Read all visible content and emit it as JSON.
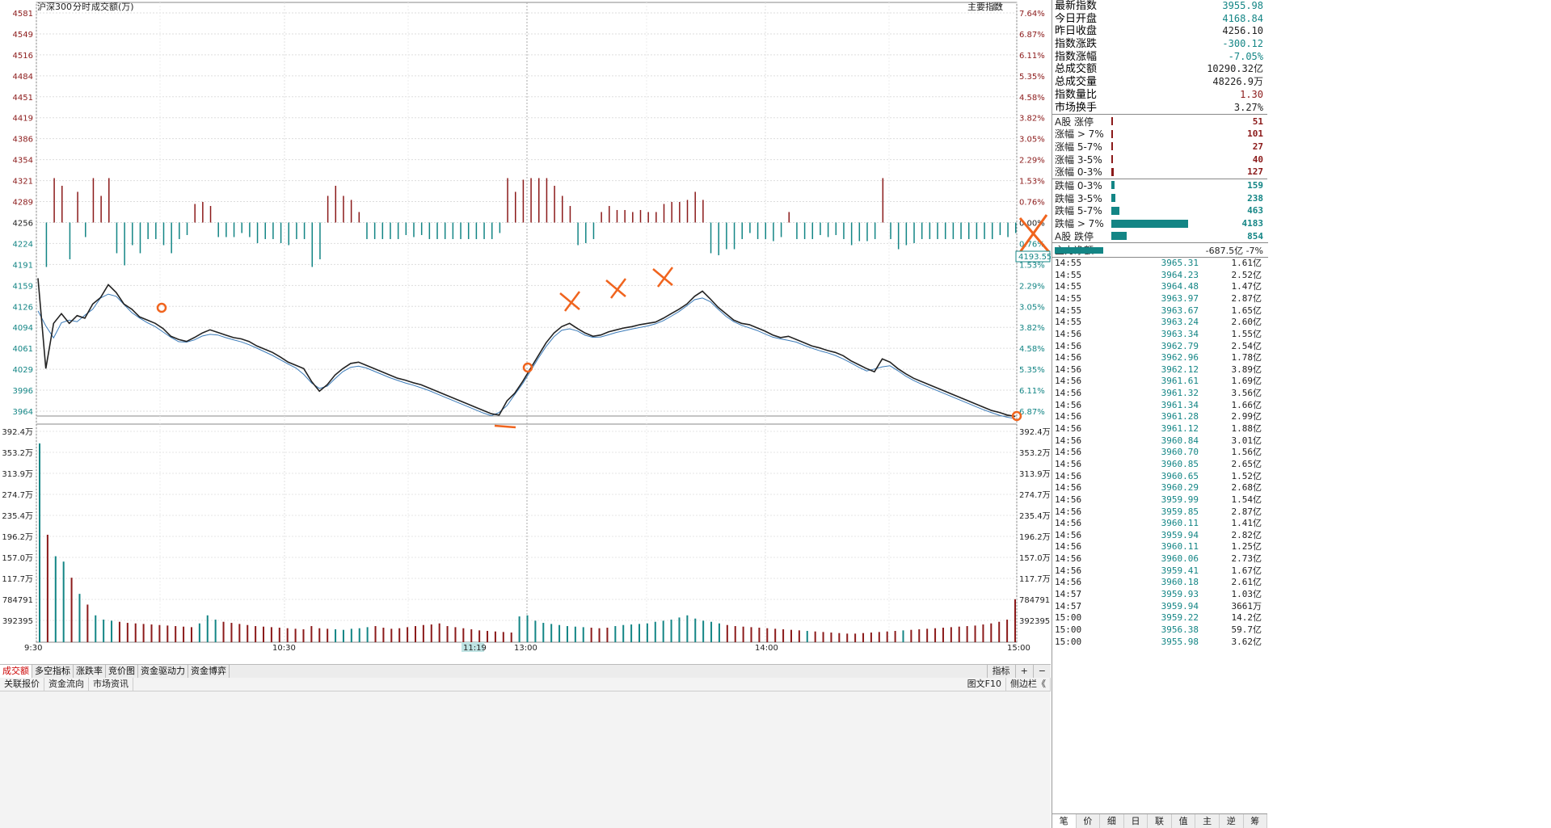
{
  "header": {
    "index_name": "沪深300",
    "mode": "分时",
    "sub": "成交额(万)",
    "main_index_btn": "主要指数"
  },
  "price_axis": {
    "left_labels": [
      "4581",
      "4549",
      "4516",
      "4484",
      "4451",
      "4419",
      "4386",
      "4354",
      "4321",
      "4289",
      "4256",
      "4224",
      "4191",
      "4159",
      "4126",
      "4094",
      "4061",
      "4029",
      "3996",
      "3964"
    ],
    "right_labels": [
      "7.64%",
      "6.87%",
      "6.11%",
      "5.35%",
      "4.58%",
      "3.82%",
      "3.05%",
      "2.29%",
      "1.53%",
      "0.76%",
      "0.00%",
      "0.76%",
      "1.53%",
      "2.29%",
      "3.05%",
      "3.82%",
      "4.58%",
      "5.35%",
      "6.11%",
      "6.87%"
    ],
    "cursor_value": "4193.55"
  },
  "volume_axis": {
    "labels": [
      "392.4万",
      "353.2万",
      "313.9万",
      "274.7万",
      "235.4万",
      "196.2万",
      "157.0万",
      "117.7万",
      "784791",
      "392395"
    ]
  },
  "time_axis": {
    "labels": [
      "9:30",
      "10:30",
      "13:00",
      "14:00",
      "15:00"
    ],
    "cursor_label": "11:19"
  },
  "bottom_tabs": [
    "成交额",
    "多空指标",
    "涨跌率",
    "竞价图",
    "资金驱动力",
    "资金博弈"
  ],
  "bottom_tools": [
    "指标",
    "+",
    "−"
  ],
  "status_links": [
    "关联报价",
    "资金流向",
    "市场资讯"
  ],
  "status_right": [
    "图文F10",
    "侧边栏《"
  ],
  "stats": [
    {
      "label": "最新指数",
      "value": "3955.98",
      "color": "#138585"
    },
    {
      "label": "今日开盘",
      "value": "4168.84",
      "color": "#138585"
    },
    {
      "label": "昨日收盘",
      "value": "4256.10",
      "color": "#222"
    },
    {
      "label": "指数涨跌",
      "value": "-300.12",
      "color": "#138585"
    },
    {
      "label": "指数涨幅",
      "value": "-7.05%",
      "color": "#138585"
    },
    {
      "label": "总成交额",
      "value": "10290.32亿",
      "color": "#222"
    },
    {
      "label": "总成交量",
      "value": "48226.9万",
      "color": "#222"
    },
    {
      "label": "指数量比",
      "value": "1.30",
      "color": "#8b1a1a"
    },
    {
      "label": "市场换手",
      "value": "3.27%",
      "color": "#222"
    }
  ],
  "dist_up": [
    {
      "label": "A股 涨停",
      "value": "51",
      "frac": 0.012
    },
    {
      "label": "涨幅 > 7%",
      "value": "101",
      "frac": 0.024
    },
    {
      "label": "涨幅 5-7%",
      "value": "27",
      "frac": 0.006
    },
    {
      "label": "涨幅 3-5%",
      "value": "40",
      "frac": 0.01
    },
    {
      "label": "涨幅 0-3%",
      "value": "127",
      "frac": 0.03
    }
  ],
  "dist_down": [
    {
      "label": "跌幅 0-3%",
      "value": "159",
      "frac": 0.038
    },
    {
      "label": "跌幅 3-5%",
      "value": "238",
      "frac": 0.057
    },
    {
      "label": "跌幅 5-7%",
      "value": "463",
      "frac": 0.11
    },
    {
      "label": "跌幅 > 7%",
      "value": "4183",
      "frac": 1.0
    },
    {
      "label": "A股 跌停",
      "value": "854",
      "frac": 0.204
    }
  ],
  "net_flow": {
    "label": "主力净额",
    "value": "-687.5亿",
    "pct": "-7%"
  },
  "ticks": [
    [
      "14:55",
      "3965.31",
      "1.61亿"
    ],
    [
      "14:55",
      "3964.23",
      "2.52亿"
    ],
    [
      "14:55",
      "3964.48",
      "1.47亿"
    ],
    [
      "14:55",
      "3963.97",
      "2.87亿"
    ],
    [
      "14:55",
      "3963.67",
      "1.65亿"
    ],
    [
      "14:55",
      "3963.24",
      "2.60亿"
    ],
    [
      "14:56",
      "3963.34",
      "1.55亿"
    ],
    [
      "14:56",
      "3962.79",
      "2.54亿"
    ],
    [
      "14:56",
      "3962.96",
      "1.78亿"
    ],
    [
      "14:56",
      "3962.12",
      "3.89亿"
    ],
    [
      "14:56",
      "3961.61",
      "1.69亿"
    ],
    [
      "14:56",
      "3961.32",
      "3.56亿"
    ],
    [
      "14:56",
      "3961.34",
      "1.66亿"
    ],
    [
      "14:56",
      "3961.28",
      "2.99亿"
    ],
    [
      "14:56",
      "3961.12",
      "1.88亿"
    ],
    [
      "14:56",
      "3960.84",
      "3.01亿"
    ],
    [
      "14:56",
      "3960.70",
      "1.56亿"
    ],
    [
      "14:56",
      "3960.85",
      "2.65亿"
    ],
    [
      "14:56",
      "3960.65",
      "1.52亿"
    ],
    [
      "14:56",
      "3960.29",
      "2.68亿"
    ],
    [
      "14:56",
      "3959.99",
      "1.54亿"
    ],
    [
      "14:56",
      "3959.85",
      "2.87亿"
    ],
    [
      "14:56",
      "3960.11",
      "1.41亿"
    ],
    [
      "14:56",
      "3959.94",
      "2.82亿"
    ],
    [
      "14:56",
      "3960.11",
      "1.25亿"
    ],
    [
      "14:56",
      "3960.06",
      "2.73亿"
    ],
    [
      "14:56",
      "3959.41",
      "1.67亿"
    ],
    [
      "14:56",
      "3960.18",
      "2.61亿"
    ],
    [
      "14:57",
      "3959.93",
      "1.03亿"
    ],
    [
      "14:57",
      "3959.94",
      "3661万"
    ],
    [
      "15:00",
      "3959.22",
      "14.2亿"
    ],
    [
      "15:00",
      "3956.38",
      "59.7亿"
    ],
    [
      "15:00",
      "3955.98",
      "3.62亿"
    ]
  ],
  "side_tabs": [
    "笔",
    "价",
    "细",
    "日",
    "联",
    "值",
    "主",
    "逆",
    "筹"
  ],
  "colors": {
    "up": "#8b1a1a",
    "down": "#138585",
    "index_line": "#222222",
    "avg_line": "#3a7ab8",
    "mark": "#f0641e"
  },
  "chart_data": {
    "type": "line",
    "series_price": [
      4170,
      4030,
      4100,
      4115,
      4100,
      4112,
      4108,
      4130,
      4140,
      4160,
      4148,
      4130,
      4122,
      4110,
      4105,
      4100,
      4092,
      4080,
      4075,
      4072,
      4078,
      4085,
      4090,
      4086,
      4082,
      4078,
      4076,
      4072,
      4065,
      4060,
      4055,
      4048,
      4040,
      4035,
      4030,
      4010,
      3995,
      4005,
      4020,
      4030,
      4038,
      4040,
      4035,
      4030,
      4025,
      4020,
      4015,
      4012,
      4008,
      4005,
      4000,
      3995,
      3990,
      3985,
      3980,
      3975,
      3970,
      3965,
      3960,
      3958,
      3980,
      3992,
      4010,
      4030,
      4050,
      4070,
      4085,
      4095,
      4100,
      4092,
      4085,
      4080,
      4082,
      4087,
      4090,
      4093,
      4095,
      4098,
      4100,
      4102,
      4108,
      4115,
      4122,
      4130,
      4142,
      4150,
      4138,
      4125,
      4115,
      4105,
      4100,
      4098,
      4093,
      4088,
      4082,
      4078,
      4080,
      4075,
      4070,
      4065,
      4062,
      4058,
      4055,
      4050,
      4042,
      4036,
      4030,
      4025,
      4045,
      4040,
      4030,
      4022,
      4015,
      4010,
      4005,
      4000,
      3995,
      3990,
      3985,
      3980,
      3975,
      3970,
      3965,
      3962,
      3958,
      3956
    ],
    "volume_profile": [
      3700000,
      2000000,
      1600000,
      1500000,
      1200000,
      900000,
      700000,
      500000,
      420000,
      400000,
      380000,
      360000,
      350000,
      340000,
      330000,
      320000,
      310000,
      300000,
      290000,
      280000,
      350000,
      500000,
      420000,
      380000,
      360000,
      340000,
      320000,
      300000,
      290000,
      280000,
      270000,
      260000,
      250000,
      240000,
      300000,
      260000,
      250000,
      240000,
      230000,
      250000,
      260000,
      280000,
      300000,
      270000,
      250000,
      260000,
      280000,
      300000,
      320000,
      330000,
      350000,
      300000,
      280000,
      260000,
      240000,
      220000,
      210000,
      200000,
      190000,
      180000,
      480000,
      500000,
      400000,
      360000,
      340000,
      320000,
      300000,
      290000,
      280000,
      270000,
      260000,
      270000,
      300000,
      320000,
      330000,
      340000,
      350000,
      380000,
      400000,
      420000,
      460000,
      500000,
      440000,
      400000,
      380000,
      350000,
      320000,
      300000,
      290000,
      280000,
      270000,
      260000,
      250000,
      240000,
      230000,
      220000,
      210000,
      200000,
      190000,
      180000,
      170000,
      160000,
      160000,
      170000,
      180000,
      190000,
      200000,
      210000,
      220000,
      230000,
      240000,
      250000,
      260000,
      270000,
      280000,
      290000,
      300000,
      310000,
      330000,
      350000,
      380000,
      420000,
      800000
    ],
    "price_range": [
      3964,
      4581
    ],
    "volume_range": [
      0,
      3924000
    ]
  }
}
